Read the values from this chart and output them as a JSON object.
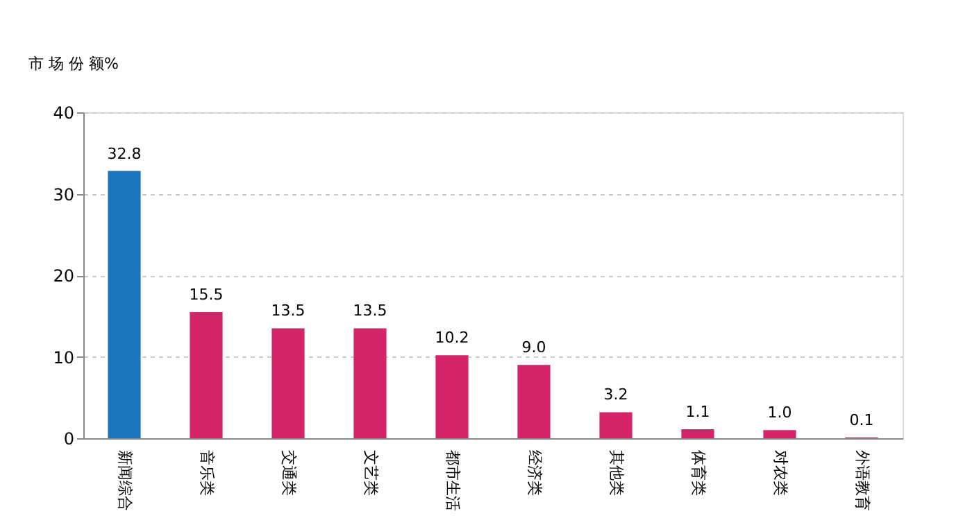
{
  "chart_data": {
    "type": "bar",
    "ylabel": "市 场 份 额%",
    "categories": [
      "新闻综合",
      "音乐类",
      "交通类",
      "文艺类",
      "都市生活",
      "经济类",
      "其他类",
      "体育类",
      "对农类",
      "外语教育"
    ],
    "values": [
      32.8,
      15.5,
      13.5,
      13.5,
      10.2,
      9.0,
      3.2,
      1.1,
      1.0,
      0.1
    ],
    "colors": [
      "#1a75bc",
      "#d6246b",
      "#d6246b",
      "#d6246b",
      "#d6246b",
      "#d6246b",
      "#d6246b",
      "#d6246b",
      "#d6246b",
      "#d6246b"
    ],
    "value_labels": [
      "32.8",
      "15.5",
      "13.5",
      "13.5",
      "10.2",
      "9.0",
      "3.2",
      "1.1",
      "1.0",
      "0.1"
    ],
    "ylim": [
      0,
      40
    ],
    "yticks": [
      0,
      10,
      20,
      30,
      40
    ],
    "grid": "y"
  }
}
